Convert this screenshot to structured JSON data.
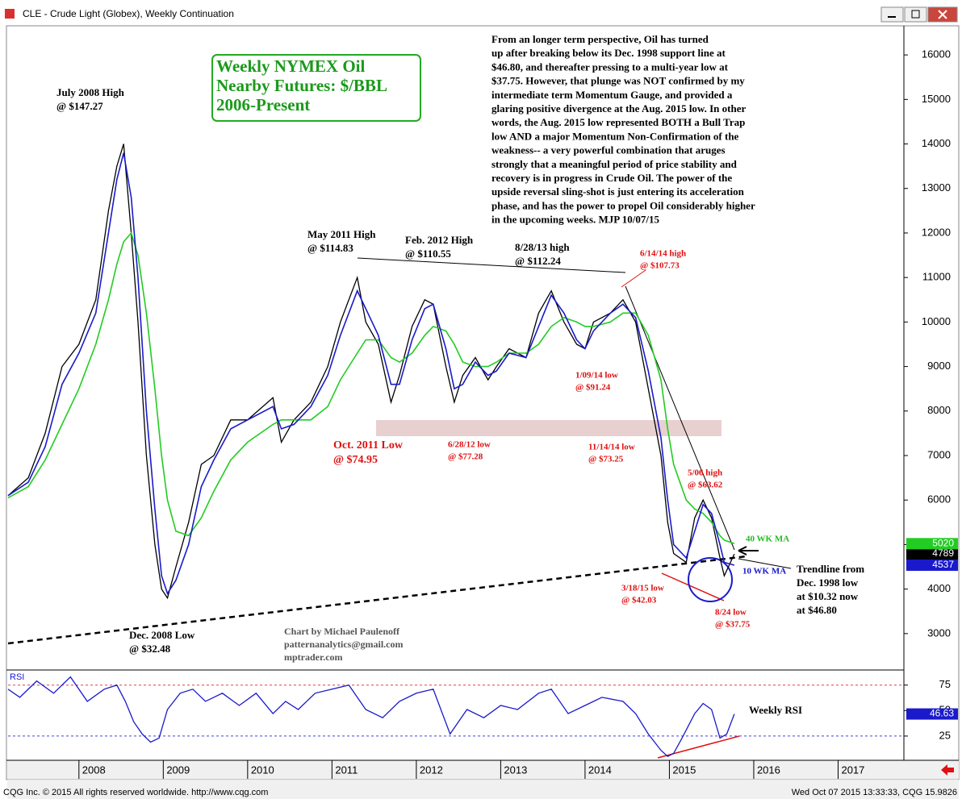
{
  "window": {
    "title": "CLE - Crude Light (Globex), Weekly Continuation"
  },
  "footer": {
    "left": "CQG Inc. © 2015 All rights reserved worldwide. http://www.cqg.com",
    "right": "Wed Oct 07 2015 13:33:33, CQG 15.9826"
  },
  "title_box": [
    "Weekly NYMEX Oil",
    "Nearby Futures: $/BBL",
    "2006-Present"
  ],
  "commentary": [
    "From an longer term perspective, Oil has turned",
    "up after breaking below its Dec. 1998 support line at",
    "$46.80, and thereafter pressing to a multi-year low at",
    "$37.75. However, that plunge was NOT confirmed by my",
    "intermediate term Momentum Gauge, and provided a",
    "glaring positive divergence at the Aug. 2015 low. In other",
    "words, the Aug. 2015 low represented BOTH a Bull Trap",
    "low AND a major Momentum Non-Confirmation of the",
    "weakness-- a very powerful combination that aruges",
    "strongly that a meaningful period of price stability and",
    "recovery is in progress in Crude Oil. The power of the",
    "upside reversal sling-shot is just entering its acceleration",
    "phase, and has the power to propel Oil considerably higher",
    "in the upcoming weeks. MJP 10/07/15"
  ],
  "chart_data": [
    {
      "type": "line",
      "x": [
        2007.16,
        2007.4,
        2007.6,
        2007.8,
        2008.0,
        2008.2,
        2008.35,
        2008.45,
        2008.53,
        2008.62,
        2008.7,
        2008.8,
        2008.9,
        2008.98,
        2009.05,
        2009.15,
        2009.3,
        2009.45,
        2009.6,
        2009.8,
        2010.0,
        2010.3,
        2010.4,
        2010.55,
        2010.75,
        2010.95,
        2011.1,
        2011.3,
        2011.4,
        2011.55,
        2011.7,
        2011.8,
        2011.95,
        2012.1,
        2012.2,
        2012.35,
        2012.45,
        2012.55,
        2012.7,
        2012.85,
        2012.95,
        2013.1,
        2013.3,
        2013.45,
        2013.6,
        2013.75,
        2013.9,
        2014.0,
        2014.1,
        2014.3,
        2014.45,
        2014.6,
        2014.75,
        2014.9,
        2014.98,
        2015.05,
        2015.2,
        2015.3,
        2015.4,
        2015.5,
        2015.6,
        2015.65,
        2015.77
      ],
      "series": [
        {
          "color": "#000000",
          "values": [
            6100,
            6500,
            7500,
            9000,
            9500,
            10500,
            12500,
            13500,
            14000,
            12000,
            10000,
            7000,
            5000,
            4000,
            3800,
            4500,
            5500,
            6800,
            7000,
            7800,
            7800,
            8300,
            7300,
            7800,
            8200,
            9000,
            10000,
            11000,
            10000,
            9500,
            8200,
            8800,
            9900,
            10500,
            10400,
            9000,
            8200,
            8800,
            9200,
            8700,
            9000,
            9400,
            9200,
            10200,
            10700,
            10000,
            9500,
            9400,
            10000,
            10200,
            10500,
            10000,
            8500,
            7000,
            5500,
            4800,
            4600,
            5600,
            6000,
            5600,
            4700,
            4300,
            4789
          ]
        },
        {
          "name": "40 WK MA",
          "color": "#22cc22",
          "values": [
            6050,
            6300,
            6900,
            7700,
            8500,
            9500,
            10500,
            11300,
            11800,
            12000,
            11500,
            10200,
            8500,
            7000,
            6000,
            5300,
            5200,
            5600,
            6200,
            6900,
            7300,
            7700,
            7800,
            7800,
            7800,
            8100,
            8700,
            9300,
            9600,
            9600,
            9200,
            9100,
            9300,
            9700,
            9900,
            9800,
            9500,
            9100,
            9000,
            9000,
            9100,
            9300,
            9300,
            9500,
            9900,
            10100,
            10000,
            9900,
            9900,
            10000,
            10200,
            10200,
            9700,
            8700,
            7600,
            6800,
            6000,
            5800,
            5700,
            5500,
            5200,
            5100,
            5020
          ]
        },
        {
          "name": "10 WK MA",
          "color": "#1a1acc",
          "values": [
            6100,
            6400,
            7200,
            8600,
            9300,
            10200,
            12000,
            13200,
            13800,
            12800,
            11000,
            8000,
            5800,
            4300,
            3900,
            4200,
            5000,
            6300,
            6900,
            7600,
            7800,
            8100,
            7600,
            7700,
            8100,
            8800,
            9700,
            10700,
            10300,
            9700,
            8600,
            8600,
            9600,
            10300,
            10400,
            9400,
            8500,
            8600,
            9100,
            8800,
            8900,
            9300,
            9200,
            9900,
            10600,
            10200,
            9600,
            9400,
            9800,
            10200,
            10400,
            10100,
            8900,
            7400,
            6000,
            5000,
            4700,
            5300,
            5900,
            5700,
            5000,
            4600,
            4537
          ]
        }
      ],
      "xlim": [
        2007.16,
        2017.78
      ],
      "xticks": [
        2008,
        2009,
        2010,
        2011,
        2012,
        2013,
        2014,
        2015,
        2016,
        2017
      ],
      "ylim": [
        2200,
        16600
      ],
      "yticks": [
        3000,
        4000,
        5000,
        6000,
        7000,
        8000,
        9000,
        10000,
        11000,
        12000,
        13000,
        14000,
        15000,
        16000
      ],
      "annotations": [
        {
          "lines": [
            "July 2008 High",
            "@ $147.27"
          ],
          "color": "#000000"
        },
        {
          "lines": [
            "May 2011 High",
            "@ $114.83"
          ],
          "color": "#000000"
        },
        {
          "lines": [
            "Feb. 2012 High",
            "@ $110.55"
          ],
          "color": "#000000"
        },
        {
          "lines": [
            "8/28/13 high",
            "@ $112.24"
          ],
          "color": "#000000"
        },
        {
          "lines": [
            "6/14/14 high",
            "@ $107.73"
          ],
          "color": "#e01010"
        },
        {
          "lines": [
            "1/09/14 low",
            "@ $91.24"
          ],
          "color": "#e01010"
        },
        {
          "lines": [
            "Oct. 2011 Low",
            "@ $74.95"
          ],
          "color": "#e01010"
        },
        {
          "lines": [
            "6/28/12 low",
            "@ $77.28"
          ],
          "color": "#e01010"
        },
        {
          "lines": [
            "11/14/14 low",
            "@ $73.25"
          ],
          "color": "#e01010"
        },
        {
          "lines": [
            "5/06 high",
            "@ $63.62"
          ],
          "color": "#e01010"
        },
        {
          "lines": [
            "40 WK MA"
          ],
          "color": "#22bb22"
        },
        {
          "lines": [
            "10 WK MA"
          ],
          "color": "#1a1acc"
        },
        {
          "lines": [
            "Trendline from",
            "Dec. 1998 low",
            "at $10.32 now",
            "at $46.80"
          ],
          "color": "#000000"
        },
        {
          "lines": [
            "3/18/15 low",
            "@ $42.03"
          ],
          "color": "#e01010"
        },
        {
          "lines": [
            "8/24 low",
            "@ $37.75"
          ],
          "color": "#e01010"
        },
        {
          "lines": [
            "Dec. 2008 Low",
            "@ $32.48"
          ],
          "color": "#000000"
        },
        {
          "lines": [
            "Chart by Michael Paulenoff",
            "patternanalytics@gmail.com",
            "mptrader.com"
          ],
          "color": "#555555"
        }
      ]
    },
    {
      "type": "line",
      "title": "RSI",
      "label": "Weekly RSI",
      "x": [
        2007.16,
        2007.3,
        2007.5,
        2007.7,
        2007.9,
        2008.1,
        2008.3,
        2008.45,
        2008.55,
        2008.65,
        2008.75,
        2008.85,
        2008.95,
        2009.05,
        2009.2,
        2009.35,
        2009.5,
        2009.7,
        2009.9,
        2010.1,
        2010.3,
        2010.45,
        2010.6,
        2010.8,
        2011.0,
        2011.2,
        2011.4,
        2011.6,
        2011.8,
        2012.0,
        2012.2,
        2012.4,
        2012.6,
        2012.8,
        2013.0,
        2013.2,
        2013.45,
        2013.6,
        2013.8,
        2014.0,
        2014.2,
        2014.45,
        2014.6,
        2014.75,
        2014.9,
        2014.98,
        2015.05,
        2015.15,
        2015.3,
        2015.4,
        2015.5,
        2015.6,
        2015.68,
        2015.77
      ],
      "series": [
        {
          "color": "#1a1acc",
          "values": [
            71,
            63,
            79,
            67,
            83,
            59,
            71,
            75,
            59,
            39,
            27,
            19,
            23,
            51,
            67,
            71,
            59,
            67,
            55,
            67,
            47,
            59,
            51,
            67,
            71,
            75,
            51,
            43,
            59,
            67,
            71,
            27,
            51,
            43,
            55,
            51,
            67,
            71,
            47,
            55,
            63,
            59,
            47,
            27,
            11,
            5,
            8,
            23,
            47,
            57,
            51,
            23,
            27,
            46.63
          ]
        }
      ],
      "xlim": [
        2007.16,
        2017.78
      ],
      "ylim": [
        2,
        89
      ],
      "yticks": [
        25,
        50,
        75
      ],
      "hlines": [
        {
          "value": 75,
          "color": "#e04040"
        },
        {
          "value": 25,
          "color": "#4040e0"
        }
      ]
    }
  ]
}
